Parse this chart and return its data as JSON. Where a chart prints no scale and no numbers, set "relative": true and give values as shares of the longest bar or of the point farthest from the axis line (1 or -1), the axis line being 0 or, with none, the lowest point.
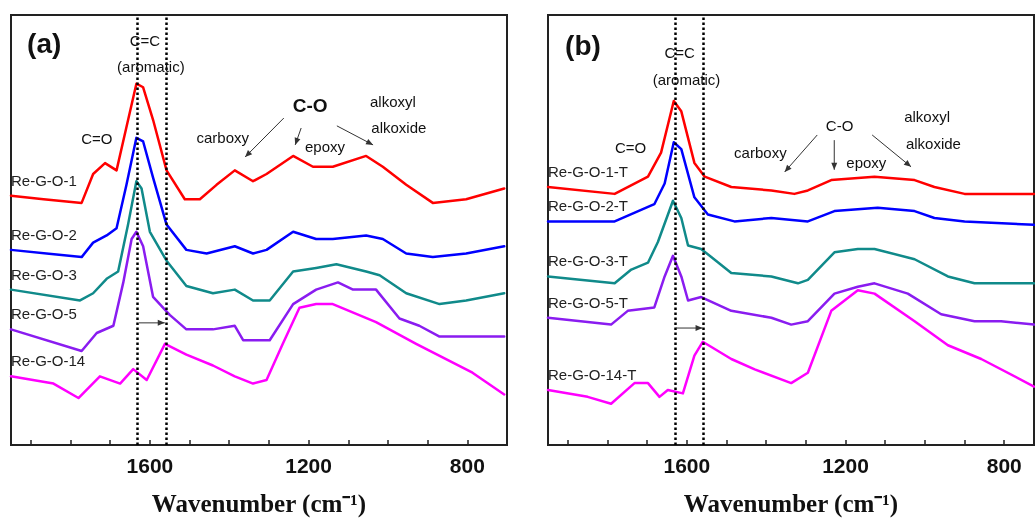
{
  "chart_data": [
    {
      "type": "line",
      "relative": true,
      "xlabel": "Wavenumber (cm⁻¹)",
      "xlim": [
        1950,
        700
      ],
      "xticks": [
        {
          "value": 1900,
          "label": null
        },
        {
          "value": 1800,
          "label": null
        },
        {
          "value": 1700,
          "label": null
        },
        1600,
        {
          "value": 1500,
          "label": null
        },
        {
          "value": 1400,
          "label": null
        },
        {
          "value": 1300,
          "label": null
        },
        1200,
        {
          "value": 1100,
          "label": null
        },
        {
          "value": 1000,
          "label": null
        },
        {
          "value": 900,
          "label": null
        },
        800
      ],
      "annotations": [
        "(a)",
        "C=C",
        "(aromatic)",
        "C=O",
        "carboxy",
        "C-O",
        "epoxy",
        "alkoxyl",
        "alkoxide"
      ],
      "ref_lines": [
        {
          "axis": "x",
          "value": 1632,
          "color": "#000000",
          "line_style": "dotted"
        },
        {
          "axis": "x",
          "value": 1560,
          "color": "#000000",
          "line_style": "dotted"
        }
      ],
      "series": [
        {
          "name": "Re-G-O-1",
          "color": "#ff0000",
          "x": [
            1950,
            1868,
            1772,
            1743,
            1713,
            1684,
            1659,
            1634,
            1617,
            1592,
            1558,
            1512,
            1474,
            1432,
            1386,
            1340,
            1306,
            1239,
            1189,
            1139,
            1055,
            1013,
            954,
            887,
            803,
            707
          ],
          "values": [
            0.69,
            0.68,
            0.67,
            0.75,
            0.78,
            0.76,
            0.88,
            1.0,
            0.99,
            0.9,
            0.76,
            0.68,
            0.68,
            0.72,
            0.76,
            0.73,
            0.75,
            0.8,
            0.77,
            0.77,
            0.8,
            0.77,
            0.72,
            0.67,
            0.68,
            0.71
          ]
        },
        {
          "name": "Re-G-O-2",
          "color": "#0000ff",
          "x": [
            1950,
            1772,
            1743,
            1709,
            1684,
            1659,
            1634,
            1617,
            1592,
            1558,
            1508,
            1457,
            1386,
            1340,
            1306,
            1239,
            1181,
            1139,
            1055,
            1013,
            954,
            887,
            803,
            707
          ],
          "values": [
            0.54,
            0.52,
            0.56,
            0.58,
            0.6,
            0.72,
            0.85,
            0.84,
            0.74,
            0.61,
            0.54,
            0.53,
            0.55,
            0.53,
            0.54,
            0.59,
            0.57,
            0.57,
            0.58,
            0.57,
            0.53,
            0.52,
            0.53,
            0.55
          ]
        },
        {
          "name": "Re-G-O-3",
          "color": "#108a8a",
          "x": [
            1950,
            1776,
            1743,
            1709,
            1680,
            1655,
            1634,
            1621,
            1600,
            1558,
            1508,
            1441,
            1386,
            1340,
            1298,
            1239,
            1181,
            1130,
            1055,
            1021,
            954,
            870,
            803,
            707
          ],
          "values": [
            0.43,
            0.4,
            0.42,
            0.46,
            0.48,
            0.61,
            0.73,
            0.71,
            0.59,
            0.51,
            0.44,
            0.42,
            0.43,
            0.4,
            0.4,
            0.48,
            0.49,
            0.5,
            0.48,
            0.47,
            0.42,
            0.39,
            0.4,
            0.42
          ]
        },
        {
          "name": "Re-G-O-5",
          "color": "#8a1cf0",
          "x": [
            1950,
            1772,
            1734,
            1692,
            1667,
            1646,
            1634,
            1617,
            1592,
            1550,
            1508,
            1441,
            1386,
            1365,
            1298,
            1239,
            1181,
            1126,
            1088,
            1030,
            971,
            921,
            870,
            803,
            707
          ],
          "values": [
            0.32,
            0.26,
            0.31,
            0.33,
            0.45,
            0.57,
            0.59,
            0.55,
            0.41,
            0.36,
            0.32,
            0.32,
            0.33,
            0.29,
            0.29,
            0.39,
            0.43,
            0.45,
            0.43,
            0.43,
            0.35,
            0.33,
            0.3,
            0.3,
            0.3
          ]
        },
        {
          "name": "Re-G-O-14",
          "color": "#ff00ff",
          "x": [
            1950,
            1843,
            1780,
            1726,
            1675,
            1642,
            1608,
            1562,
            1508,
            1441,
            1386,
            1340,
            1306,
            1265,
            1223,
            1181,
            1139,
            1030,
            929,
            787,
            707
          ],
          "values": [
            0.19,
            0.17,
            0.13,
            0.19,
            0.17,
            0.21,
            0.18,
            0.28,
            0.25,
            0.22,
            0.19,
            0.17,
            0.18,
            0.28,
            0.38,
            0.39,
            0.39,
            0.34,
            0.28,
            0.2,
            0.14
          ]
        }
      ]
    },
    {
      "type": "line",
      "relative": true,
      "xlabel": "Wavenumber (cm⁻¹)",
      "xlim": [
        1950,
        725
      ],
      "xticks": [
        {
          "value": 1900,
          "label": null
        },
        {
          "value": 1800,
          "label": null
        },
        {
          "value": 1700,
          "label": null
        },
        1600,
        {
          "value": 1500,
          "label": null
        },
        {
          "value": 1400,
          "label": null
        },
        {
          "value": 1300,
          "label": null
        },
        1200,
        {
          "value": 1100,
          "label": null
        },
        {
          "value": 1000,
          "label": null
        },
        {
          "value": 900,
          "label": null
        },
        800
      ],
      "annotations": [
        "(b)",
        "C=C",
        "(aromatic)",
        "C=O",
        "carboxy",
        "C-O",
        "epoxy",
        "alkoxyl",
        "alkoxide"
      ],
      "ref_lines": [
        {
          "axis": "x",
          "value": 1630,
          "color": "#000000",
          "line_style": "dotted"
        },
        {
          "axis": "x",
          "value": 1558,
          "color": "#000000",
          "line_style": "dotted"
        }
      ],
      "series": [
        {
          "name": "Re-G-O-1-T",
          "color": "#ff0000",
          "x": [
            1950,
            1782,
            1698,
            1665,
            1633,
            1614,
            1581,
            1555,
            1488,
            1387,
            1329,
            1295,
            1236,
            1127,
            1026,
            976,
            900,
            808,
            725
          ],
          "values": [
            0.75,
            0.73,
            0.78,
            0.85,
            1.0,
            0.97,
            0.82,
            0.78,
            0.75,
            0.74,
            0.73,
            0.74,
            0.77,
            0.78,
            0.77,
            0.75,
            0.73,
            0.73,
            0.73
          ]
        },
        {
          "name": "Re-G-O-2-T",
          "color": "#0000ff",
          "x": [
            1950,
            1782,
            1682,
            1656,
            1633,
            1614,
            1581,
            1547,
            1480,
            1387,
            1295,
            1228,
            1119,
            1026,
            976,
            900,
            725
          ],
          "values": [
            0.65,
            0.65,
            0.7,
            0.76,
            0.88,
            0.86,
            0.72,
            0.67,
            0.65,
            0.66,
            0.65,
            0.68,
            0.69,
            0.68,
            0.66,
            0.65,
            0.64
          ]
        },
        {
          "name": "Re-G-O-3-T",
          "color": "#108a8a",
          "x": [
            1950,
            1782,
            1740,
            1698,
            1673,
            1635,
            1614,
            1597,
            1564,
            1488,
            1387,
            1320,
            1295,
            1228,
            1169,
            1127,
            1026,
            942,
            875,
            725
          ],
          "values": [
            0.49,
            0.47,
            0.51,
            0.53,
            0.59,
            0.71,
            0.66,
            0.58,
            0.57,
            0.5,
            0.49,
            0.47,
            0.48,
            0.56,
            0.57,
            0.57,
            0.54,
            0.49,
            0.47,
            0.47
          ]
        },
        {
          "name": "Re-G-O-5-T",
          "color": "#8a1cf0",
          "x": [
            1950,
            1791,
            1749,
            1682,
            1656,
            1635,
            1614,
            1597,
            1564,
            1488,
            1387,
            1337,
            1295,
            1228,
            1169,
            1127,
            1043,
            959,
            875,
            808,
            725
          ],
          "values": [
            0.37,
            0.35,
            0.39,
            0.4,
            0.49,
            0.55,
            0.49,
            0.42,
            0.43,
            0.39,
            0.37,
            0.35,
            0.36,
            0.44,
            0.46,
            0.47,
            0.44,
            0.38,
            0.36,
            0.36,
            0.35
          ]
        },
        {
          "name": "Re-G-O-14-T",
          "color": "#ff00ff",
          "x": [
            1950,
            1850,
            1791,
            1732,
            1698,
            1669,
            1648,
            1610,
            1581,
            1560,
            1488,
            1429,
            1337,
            1295,
            1236,
            1169,
            1127,
            1026,
            942,
            858,
            725
          ],
          "values": [
            0.16,
            0.14,
            0.12,
            0.18,
            0.18,
            0.14,
            0.16,
            0.15,
            0.26,
            0.3,
            0.25,
            0.22,
            0.18,
            0.21,
            0.39,
            0.45,
            0.44,
            0.36,
            0.29,
            0.25,
            0.17
          ]
        }
      ]
    }
  ]
}
